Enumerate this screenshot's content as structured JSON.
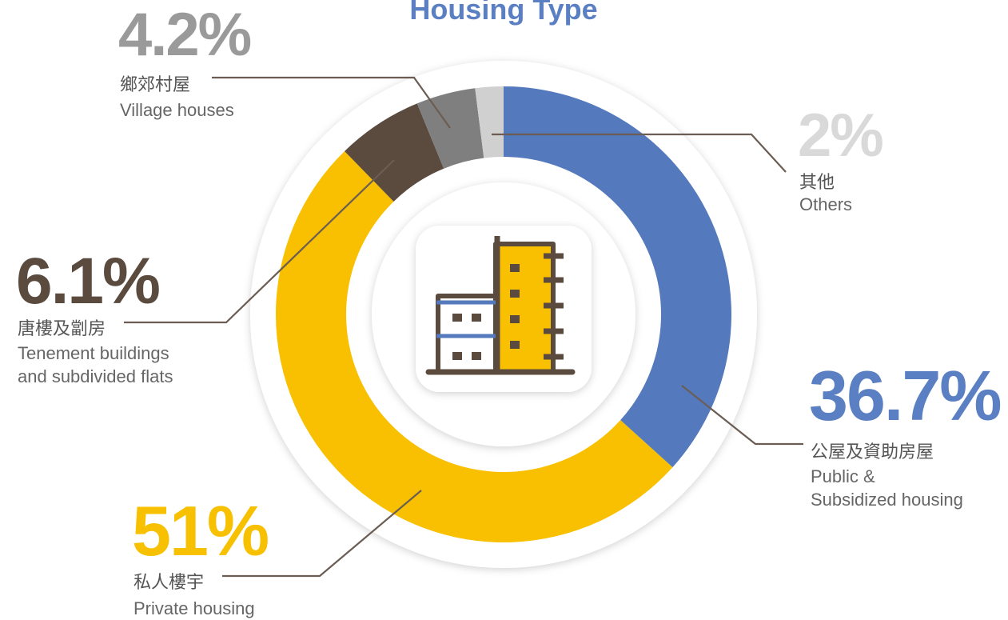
{
  "chart_data": {
    "type": "pie",
    "title": "Housing Type",
    "categories": [
      [
        "Public &",
        "Subsidized housing"
      ],
      [
        "Private housing"
      ],
      [
        "Tenement buildings",
        "and subdivided flats"
      ],
      [
        "Village houses"
      ],
      [
        "Others"
      ]
    ],
    "categories_zh": [
      "公屋及資助房屋",
      "私人樓宇",
      "唐樓及劏房",
      "鄉郊村屋",
      "其他"
    ],
    "values": [
      36.7,
      51,
      6.1,
      4.2,
      2
    ],
    "value_labels": [
      "36.7%",
      "51%",
      "6.1%",
      "4.2%",
      "2%"
    ],
    "colors": [
      "#5479bd",
      "#f8c000",
      "#5b4a3e",
      "#7f7f7f",
      "#d0d0d0"
    ],
    "label_colors": [
      "#5a7fc2",
      "#f7c000",
      "#5b4a3e",
      "#9a9a9a",
      "#d9d9d9"
    ]
  }
}
